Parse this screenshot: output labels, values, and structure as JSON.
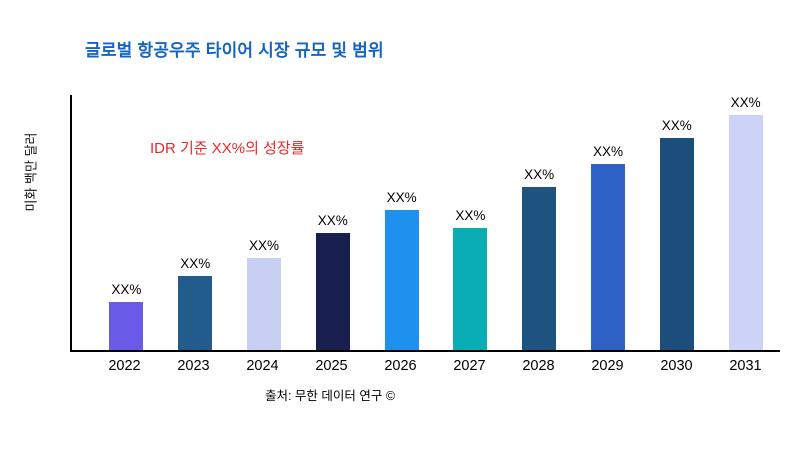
{
  "chart_data": {
    "type": "bar",
    "title": "글로벌 항공우주 타이어 시장 규모 및 범위",
    "title_color": "#1565c0",
    "annotation": "IDR 기준 XX%의 성장률",
    "annotation_color": "#e82828",
    "ylabel": "미화 백만 달러",
    "xlabel": "",
    "source_note": "출처: 무한 데이터 연구 ©",
    "categories": [
      "2022",
      "2023",
      "2024",
      "2025",
      "2026",
      "2027",
      "2028",
      "2029",
      "2030",
      "2031"
    ],
    "values": [
      19,
      29,
      36,
      46,
      55,
      48,
      64,
      73,
      83,
      92
    ],
    "bar_labels": [
      "XX%",
      "XX%",
      "XX%",
      "XX%",
      "XX%",
      "XX%",
      "XX%",
      "XX%",
      "XX%",
      "XX%"
    ],
    "bar_colors": [
      "#6a5ae8",
      "#215c8c",
      "#c9cef3",
      "#171f4e",
      "#1e90ee",
      "#08aeb4",
      "#1e527f",
      "#2e61c4",
      "#1c4e7c",
      "#cdd3f6"
    ],
    "ylim": [
      0,
      100
    ],
    "grid": false,
    "legend": false,
    "axis_color": "#000000"
  }
}
